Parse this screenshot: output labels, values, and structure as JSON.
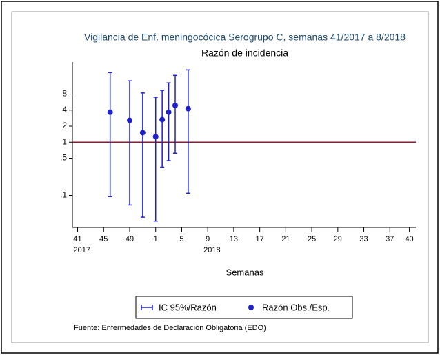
{
  "chart_data": {
    "type": "scatter",
    "title": "Vigilancia de Enf. meningocócica Serogrupo C, semanas 41/2017 a 8/2018",
    "subtitle": "Razón de incidencia",
    "x_label": "Semanas",
    "source": "Fuente: Enfermedades de Declaración Obligatoria (EDO)",
    "x": [
      46,
      49,
      51,
      53,
      54,
      55,
      56,
      58
    ],
    "series": [
      {
        "name": "Razón Obs./Esp.",
        "color": "#1e22c8",
        "values": [
          3.66,
          2.57,
          1.51,
          1.27,
          2.65,
          3.66,
          4.9,
          4.25
        ]
      }
    ],
    "ci": {
      "name": "IC 95%/Razón",
      "color": "#1e22c8",
      "lower": [
        0.095,
        0.066,
        0.039,
        0.033,
        0.34,
        0.45,
        0.62,
        0.11
      ],
      "upper": [
        20.3,
        14.2,
        8.4,
        7.0,
        9.4,
        13.0,
        18.0,
        22.8
      ]
    },
    "reference_line": {
      "value": 1,
      "color": "#a01030"
    },
    "log_y": true,
    "xlim": [
      40.2,
      93
    ],
    "ylim": [
      0.025,
      32
    ],
    "xticks": [
      41,
      45,
      49,
      {
        "value": 53,
        "label": "1"
      },
      {
        "value": 57,
        "label": "5"
      },
      {
        "value": 61,
        "label": "9"
      },
      {
        "value": 65,
        "label": "13"
      },
      {
        "value": 69,
        "label": "17"
      },
      {
        "value": 73,
        "label": "21"
      },
      {
        "value": 77,
        "label": "25"
      },
      {
        "value": 81,
        "label": "29"
      },
      {
        "value": 85,
        "label": "33"
      },
      {
        "value": 89,
        "label": "37"
      },
      {
        "value": 92,
        "label": "40"
      }
    ],
    "yticks": [
      {
        "value": 0.1,
        "label": ".1"
      },
      {
        "value": 0.5,
        "label": ".5"
      },
      1,
      2,
      4,
      8
    ],
    "annotations": [
      {
        "text": "2017",
        "x": 41
      },
      {
        "text": "2018",
        "x": 61
      }
    ],
    "legend": "bottom"
  }
}
